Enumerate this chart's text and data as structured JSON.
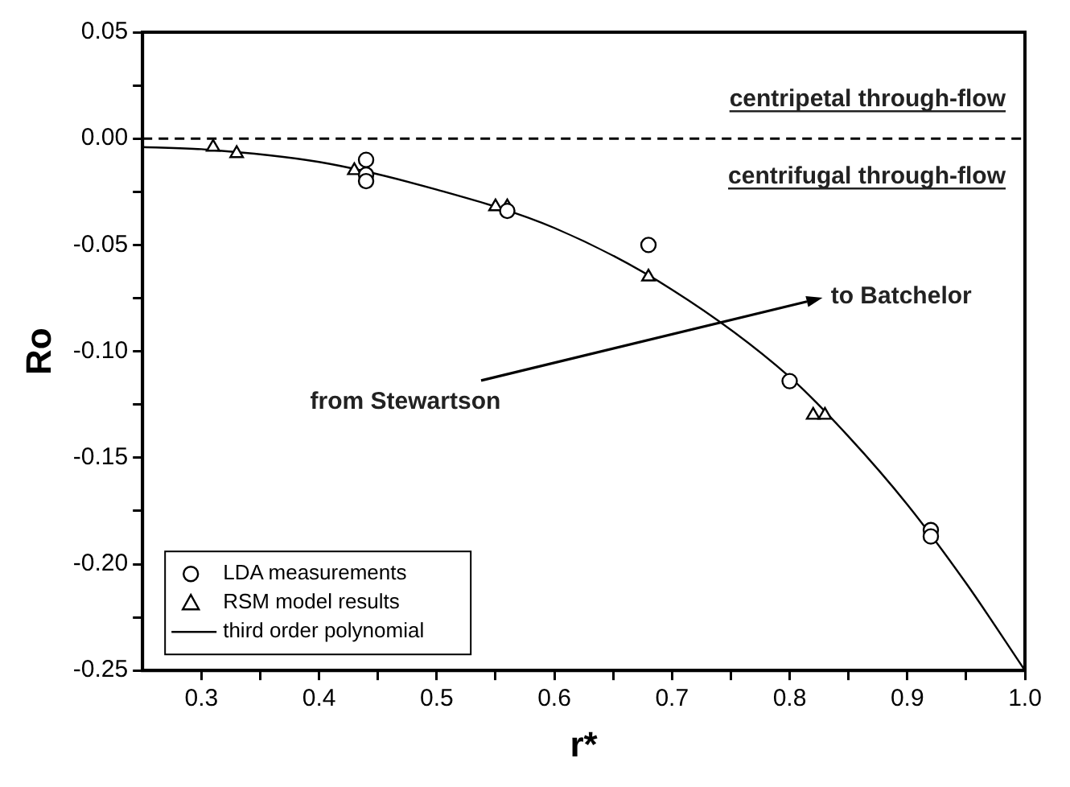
{
  "chart_data": {
    "type": "scatter",
    "xlabel": "r*",
    "ylabel": "Ro",
    "xlim": [
      0.25,
      1.0
    ],
    "ylim": [
      -0.25,
      0.05
    ],
    "xticks": [
      {
        "value": 0.3,
        "label": "0.3"
      },
      {
        "value": 0.35,
        "label": null
      },
      {
        "value": 0.4,
        "label": "0.4"
      },
      {
        "value": 0.45,
        "label": null
      },
      {
        "value": 0.5,
        "label": "0.5"
      },
      {
        "value": 0.55,
        "label": null
      },
      {
        "value": 0.6,
        "label": "0.6"
      },
      {
        "value": 0.65,
        "label": null
      },
      {
        "value": 0.7,
        "label": "0.7"
      },
      {
        "value": 0.75,
        "label": null
      },
      {
        "value": 0.8,
        "label": "0.8"
      },
      {
        "value": 0.85,
        "label": null
      },
      {
        "value": 0.9,
        "label": "0.9"
      },
      {
        "value": 0.95,
        "label": null
      },
      {
        "value": 1.0,
        "label": "1.0"
      }
    ],
    "yticks": [
      {
        "value": -0.25,
        "label": "-0.25"
      },
      {
        "value": -0.225,
        "label": null
      },
      {
        "value": -0.2,
        "label": "-0.20"
      },
      {
        "value": -0.175,
        "label": null
      },
      {
        "value": -0.15,
        "label": "-0.15"
      },
      {
        "value": -0.125,
        "label": null
      },
      {
        "value": -0.1,
        "label": "-0.10"
      },
      {
        "value": -0.075,
        "label": null
      },
      {
        "value": -0.05,
        "label": "-0.05"
      },
      {
        "value": -0.025,
        "label": null
      },
      {
        "value": 0,
        "label": "0.00"
      },
      {
        "value": 0.025,
        "label": null
      },
      {
        "value": 0.05,
        "label": "0.05"
      }
    ],
    "grid": false,
    "legend": "bottom left",
    "series": [
      {
        "name": "LDA measurements",
        "type": "scatter",
        "marker": "circle",
        "color": "#000000",
        "x": [
          0.44,
          0.44,
          0.44,
          0.56,
          0.68,
          0.8,
          0.92,
          0.92
        ],
        "values": [
          -0.01,
          -0.017,
          -0.02,
          -0.034,
          -0.05,
          -0.114,
          -0.184,
          -0.187
        ]
      },
      {
        "name": "RSM model results",
        "type": "scatter",
        "marker": "triangle",
        "color": "#000000",
        "x": [
          0.31,
          0.33,
          0.43,
          0.55,
          0.56,
          0.68,
          0.82,
          0.83
        ],
        "values": [
          -0.004,
          -0.007,
          -0.015,
          -0.032,
          -0.032,
          -0.065,
          -0.13,
          -0.13
        ]
      },
      {
        "name": "third order polynomial",
        "type": "line",
        "marker": "none",
        "line_style": "solid",
        "color": "#000000",
        "x": [
          0.25,
          0.3,
          0.4,
          0.5,
          0.6,
          0.7,
          0.8,
          0.85,
          0.9,
          0.95,
          1.0
        ],
        "values": [
          -0.004,
          -0.005,
          -0.011,
          -0.024,
          -0.042,
          -0.071,
          -0.112,
          -0.14,
          -0.172,
          -0.209,
          -0.25
        ]
      }
    ],
    "ref_lines": [
      {
        "axis": "y",
        "value": 0,
        "color": "#000000",
        "line_style": "dashed"
      }
    ],
    "annotations": [
      "centripetal through-flow",
      "centrifugal through-flow",
      "from Stewartson",
      "to Batchelor"
    ]
  }
}
